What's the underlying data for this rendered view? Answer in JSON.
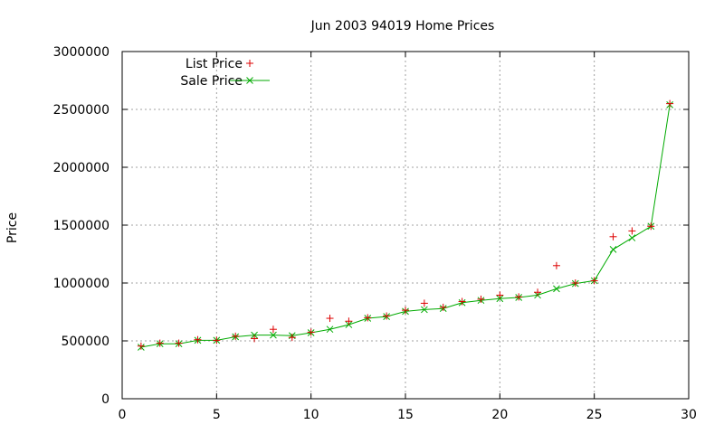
{
  "chart_data": {
    "type": "scatter",
    "title": "Jun 2003 94019 Home Prices",
    "xlabel": "",
    "ylabel": "Price",
    "xlim": [
      0,
      30
    ],
    "ylim": [
      0,
      3000000
    ],
    "x_ticks": [
      0,
      5,
      10,
      15,
      20,
      25,
      30
    ],
    "y_ticks": [
      0,
      500000,
      1000000,
      1500000,
      2000000,
      2500000,
      3000000
    ],
    "grid": true,
    "legend_position": "top-left",
    "series": [
      {
        "name": "List Price",
        "style": "points",
        "marker": "plus",
        "color": "#dd0000",
        "x": [
          1,
          2,
          3,
          4,
          5,
          6,
          7,
          8,
          9,
          10,
          11,
          12,
          13,
          14,
          15,
          16,
          17,
          18,
          19,
          20,
          21,
          22,
          23,
          24,
          25,
          26,
          27,
          28,
          29
        ],
        "values": [
          455000,
          480000,
          480000,
          510000,
          505000,
          540000,
          520000,
          600000,
          530000,
          575000,
          695000,
          670000,
          700000,
          715000,
          765000,
          825000,
          790000,
          840000,
          860000,
          895000,
          880000,
          920000,
          1150000,
          1000000,
          1020000,
          1400000,
          1450000,
          1490000,
          2550000
        ]
      },
      {
        "name": "Sale Price",
        "style": "linespoints",
        "marker": "cross",
        "color": "#00aa00",
        "x": [
          1,
          2,
          3,
          4,
          5,
          6,
          7,
          8,
          9,
          10,
          11,
          12,
          13,
          14,
          15,
          16,
          17,
          18,
          19,
          20,
          21,
          22,
          23,
          24,
          25,
          26,
          27,
          28,
          29
        ],
        "values": [
          445000,
          475000,
          475000,
          505000,
          505000,
          535000,
          550000,
          550000,
          545000,
          570000,
          600000,
          640000,
          695000,
          710000,
          755000,
          770000,
          780000,
          830000,
          850000,
          865000,
          875000,
          895000,
          950000,
          995000,
          1020000,
          1290000,
          1390000,
          1490000,
          2540000
        ]
      }
    ]
  }
}
